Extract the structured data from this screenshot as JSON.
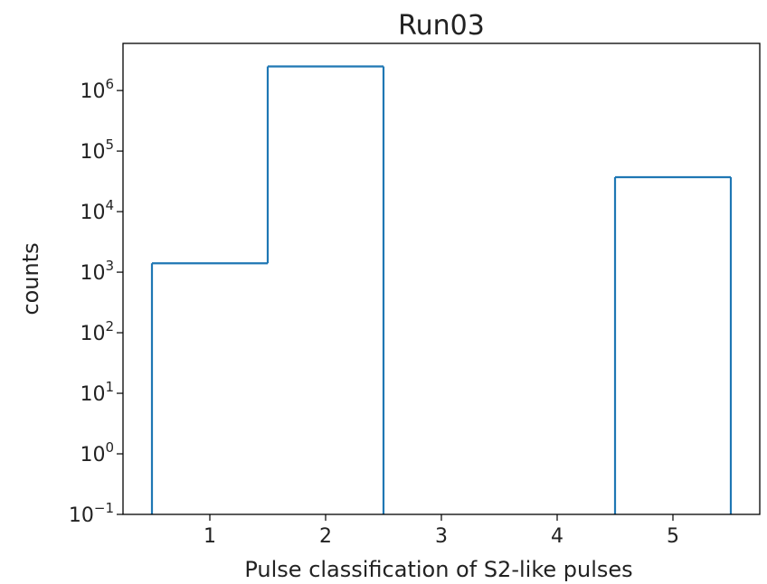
{
  "chart_data": {
    "type": "histogram-step",
    "title": "Run03",
    "xlabel": "Pulse classification of S2-like pulses",
    "ylabel": "counts",
    "yscale": "log",
    "xlim": [
      0.25,
      5.75
    ],
    "ylim": [
      0.1,
      6000000
    ],
    "x_ticks": [
      1,
      2,
      3,
      4,
      5
    ],
    "x_tick_labels": [
      "1",
      "2",
      "3",
      "4",
      "5"
    ],
    "y_ticks": [
      0.1,
      1,
      10,
      100,
      1000,
      10000,
      100000,
      1000000
    ],
    "y_tick_labels": [
      {
        "base": "10",
        "exp": "−1"
      },
      {
        "base": "10",
        "exp": "0"
      },
      {
        "base": "10",
        "exp": "1"
      },
      {
        "base": "10",
        "exp": "2"
      },
      {
        "base": "10",
        "exp": "3"
      },
      {
        "base": "10",
        "exp": "4"
      },
      {
        "base": "10",
        "exp": "5"
      },
      {
        "base": "10",
        "exp": "6"
      }
    ],
    "bin_edges": [
      0.5,
      1.5,
      2.5,
      3.5,
      4.5,
      5.5
    ],
    "counts": [
      1400,
      2500000,
      0,
      0,
      37000
    ],
    "line_color": "#1f77b4",
    "grid": false,
    "legend": "none"
  }
}
